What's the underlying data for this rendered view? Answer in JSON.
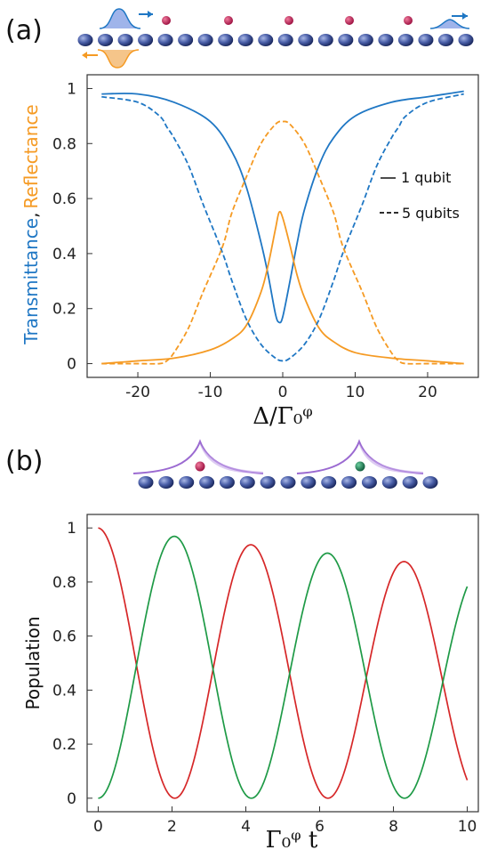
{
  "colors": {
    "blue": "#1f77c4",
    "orange": "#f59a23",
    "red": "#d62728",
    "green": "#1e9a46",
    "chain_atom": "#4a5fa8",
    "qubit": "#c8245a",
    "qubit_excited": "#1f8a60",
    "purple": "#9b6ad1"
  },
  "panel_a": {
    "label": "(a)",
    "ylabel_part1": "Transmittance",
    "ylabel_sep": ",",
    "ylabel_part2": "Reflectance",
    "xlabel": "Δ/Γ₀ᵠ",
    "legend": {
      "solid": "1 qubit",
      "dashed": "5 qubits"
    }
  },
  "panel_b": {
    "label": "(b)",
    "ylabel": "Population",
    "xlabel": "Γ₀ᵠ t"
  },
  "chart_data": [
    {
      "type": "line",
      "xlabel": "Δ/Γ₀ᵠ",
      "ylabel": "Transmittance, Reflectance",
      "xlim": [
        -27,
        27
      ],
      "ylim": [
        -0.05,
        1.05
      ],
      "xticks": [
        -20,
        -10,
        0,
        10,
        20
      ],
      "xtick_labels": [
        "-20",
        "-10",
        "0",
        "10",
        "20"
      ],
      "yticks": [
        0,
        0.2,
        0.4,
        0.6,
        0.8,
        1
      ],
      "ytick_labels": [
        "0",
        "0.2",
        "0.4",
        "0.6",
        "0.8",
        "1"
      ],
      "legend_position": "right",
      "series": [
        {
          "name": "1 qubit",
          "quantity": "Transmittance",
          "style": "solid",
          "color": "blue",
          "x": [
            -25,
            -20,
            -15,
            -10,
            -7,
            -5,
            -3,
            -2,
            -1,
            -0.5,
            0,
            1,
            2,
            3,
            5,
            7,
            10,
            15,
            20,
            25
          ],
          "y": [
            0.98,
            0.98,
            0.95,
            0.88,
            0.77,
            0.64,
            0.44,
            0.32,
            0.18,
            0.15,
            0.17,
            0.3,
            0.44,
            0.56,
            0.72,
            0.82,
            0.9,
            0.95,
            0.97,
            0.99
          ]
        },
        {
          "name": "1 qubit",
          "quantity": "Reflectance",
          "style": "solid",
          "color": "orange",
          "x": [
            -25,
            -20,
            -15,
            -10,
            -7,
            -5,
            -3,
            -2,
            -1,
            -0.5,
            0,
            1,
            2,
            3,
            5,
            7,
            10,
            15,
            20,
            25
          ],
          "y": [
            0.0,
            0.01,
            0.02,
            0.05,
            0.09,
            0.14,
            0.26,
            0.36,
            0.49,
            0.55,
            0.53,
            0.43,
            0.32,
            0.24,
            0.13,
            0.08,
            0.04,
            0.02,
            0.01,
            0.0
          ]
        },
        {
          "name": "5 qubits",
          "quantity": "Transmittance",
          "style": "dashed",
          "color": "blue",
          "x": [
            -25,
            -20,
            -17,
            -16,
            -15,
            -13,
            -11,
            -9,
            -8,
            -7,
            -5,
            -3,
            -1,
            0,
            1,
            3,
            5,
            7,
            8,
            9,
            11,
            13,
            15,
            16,
            17,
            20,
            25
          ],
          "y": [
            0.97,
            0.95,
            0.9,
            0.86,
            0.82,
            0.72,
            0.58,
            0.45,
            0.38,
            0.3,
            0.16,
            0.07,
            0.02,
            0.01,
            0.02,
            0.07,
            0.16,
            0.3,
            0.38,
            0.45,
            0.58,
            0.72,
            0.82,
            0.86,
            0.9,
            0.95,
            0.98
          ]
        },
        {
          "name": "5 qubits",
          "quantity": "Reflectance",
          "style": "dashed",
          "color": "orange",
          "x": [
            -25,
            -20,
            -17,
            -16,
            -15,
            -13,
            -11,
            -9,
            -8,
            -7,
            -5,
            -3,
            -1,
            0,
            1,
            3,
            5,
            7,
            8,
            9,
            11,
            13,
            15,
            16,
            17,
            20,
            25
          ],
          "y": [
            0.0,
            0.0,
            0.0,
            0.01,
            0.04,
            0.13,
            0.26,
            0.38,
            0.45,
            0.55,
            0.68,
            0.8,
            0.87,
            0.88,
            0.87,
            0.8,
            0.68,
            0.55,
            0.45,
            0.38,
            0.26,
            0.13,
            0.04,
            0.01,
            0.0,
            0.0,
            0.0
          ]
        }
      ]
    },
    {
      "type": "line",
      "xlabel": "Γ₀ᵠ t",
      "ylabel": "Population",
      "xlim": [
        -0.3,
        10.3
      ],
      "ylim": [
        -0.05,
        1.05
      ],
      "xticks": [
        0,
        2,
        4,
        6,
        8,
        10
      ],
      "xtick_labels": [
        "0",
        "2",
        "4",
        "6",
        "8",
        "10"
      ],
      "yticks": [
        0,
        0.2,
        0.4,
        0.6,
        0.8,
        1
      ],
      "ytick_labels": [
        "0",
        "0.2",
        "0.4",
        "0.6",
        "0.8",
        "1"
      ],
      "oscillation": {
        "period": 4.15,
        "amplitude_decay": 0.015
      },
      "series": [
        {
          "color": "red",
          "start": 1.0,
          "peaks_x": [
            0,
            4.15,
            8.3
          ],
          "peaks_y": [
            1.0,
            0.94,
            0.88
          ],
          "minimum": 0.0
        },
        {
          "color": "green",
          "start": 0.0,
          "peaks_x": [
            2.07,
            6.22
          ],
          "peaks_y": [
            0.97,
            0.91
          ],
          "end": [
            10,
            0.79
          ],
          "minimum": 0.0
        }
      ]
    }
  ]
}
